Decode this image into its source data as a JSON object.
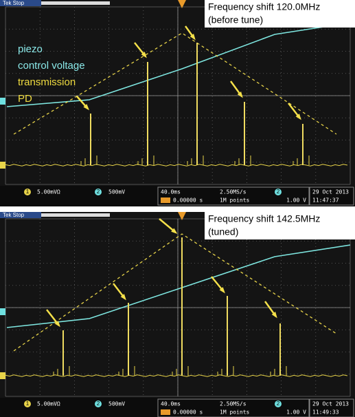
{
  "legend": [
    "piezo",
    "control voltage",
    "transmission",
    "PD"
  ],
  "panels": [
    {
      "header": "Tek Stop",
      "annotation": [
        "Frequency shift 120.0MHz",
        "(before tune)"
      ],
      "status": {
        "ch1": "1",
        "ch1_scale": "5.00mVΩ",
        "ch2": "2",
        "ch2_scale": "500mV",
        "timebase": "40.0ms",
        "position": "0.00000 s",
        "rate": "2.50MS/s",
        "points": "1M points",
        "trig_ch": "2",
        "trig_level": "1.00 V",
        "date": "29 Oct 2013",
        "time": "11:47:37"
      }
    },
    {
      "header": "Tek Stop",
      "annotation": [
        "Frequency shift 142.5MHz",
        "(tuned)"
      ],
      "status": {
        "ch1": "1",
        "ch1_scale": "5.00mVΩ",
        "ch2": "2",
        "ch2_scale": "500mV",
        "timebase": "40.0ms",
        "position": "0.00000 s",
        "rate": "2.50MS/s",
        "points": "1M points",
        "trig_ch": "2",
        "trig_level": "1.00 V",
        "date": "29 Oct 2013",
        "time": "11:49:33"
      }
    }
  ]
}
